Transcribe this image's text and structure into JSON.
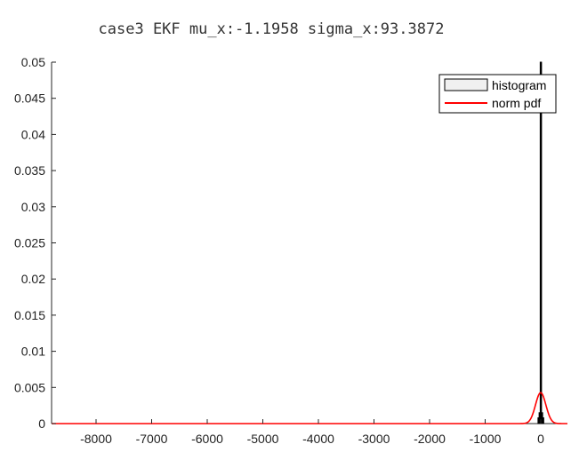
{
  "chart_data": {
    "type": "bar",
    "title": "case3   EKF    mu_x:-1.1958    sigma_x:93.3872",
    "xlabel": "",
    "ylabel": "",
    "xlim": [
      -8800,
      480
    ],
    "ylim": [
      0,
      0.05
    ],
    "xticks": [
      -8000,
      -7000,
      -6000,
      -5000,
      -4000,
      -3000,
      -2000,
      -1000,
      0
    ],
    "xtick_labels": [
      "-8000",
      "-7000",
      "-6000",
      "-5000",
      "-4000",
      "-3000",
      "-2000",
      "-1000",
      "0"
    ],
    "yticks": [
      0,
      0.005,
      0.01,
      0.015,
      0.02,
      0.025,
      0.03,
      0.035,
      0.04,
      0.045,
      0.05
    ],
    "ytick_labels": [
      "0",
      "0.005",
      "0.01",
      "0.015",
      "0.02",
      "0.025",
      "0.03",
      "0.035",
      "0.04",
      "0.045",
      "0.05"
    ],
    "grid": false,
    "legend_position": "top-right",
    "series": [
      {
        "name": "histogram",
        "type": "bar",
        "color": "#000000",
        "fill": "#f0f0f0",
        "bins": [
          {
            "x": -40,
            "y": 0.0008
          },
          {
            "x": -20,
            "y": 0.0015
          },
          {
            "x": 0,
            "y": 0.05
          },
          {
            "x": 20,
            "y": 0.0015
          },
          {
            "x": 40,
            "y": 0.0008
          }
        ]
      },
      {
        "name": "norm pdf",
        "type": "line",
        "color": "#ff0000",
        "mu": -1.1958,
        "sigma": 93.3872
      }
    ]
  }
}
